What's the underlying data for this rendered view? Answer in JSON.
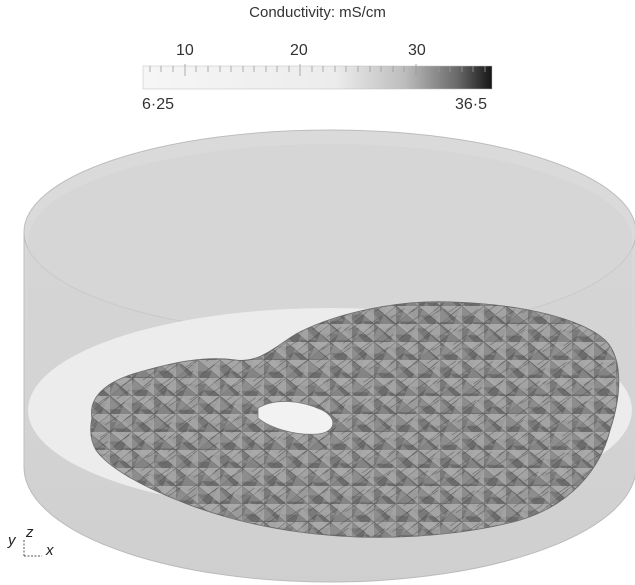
{
  "colorbar": {
    "title": "Conductivity: mS/cm",
    "ticks": [
      "10",
      "20",
      "30"
    ],
    "min_label": "6·25",
    "max_label": "36·5",
    "colors": {
      "low": "#f4f4f4",
      "mid": "#cfcfcf",
      "high": "#1c1c1c"
    }
  },
  "axes_triad": {
    "y": "y",
    "z": "z",
    "x": "x"
  },
  "colors": {
    "tank_wall": "#d6d6d6",
    "tank_floor": "#e8e8e8",
    "inclusion": "#8a8a8a",
    "inclusion_dark": "#5e5e5e"
  }
}
